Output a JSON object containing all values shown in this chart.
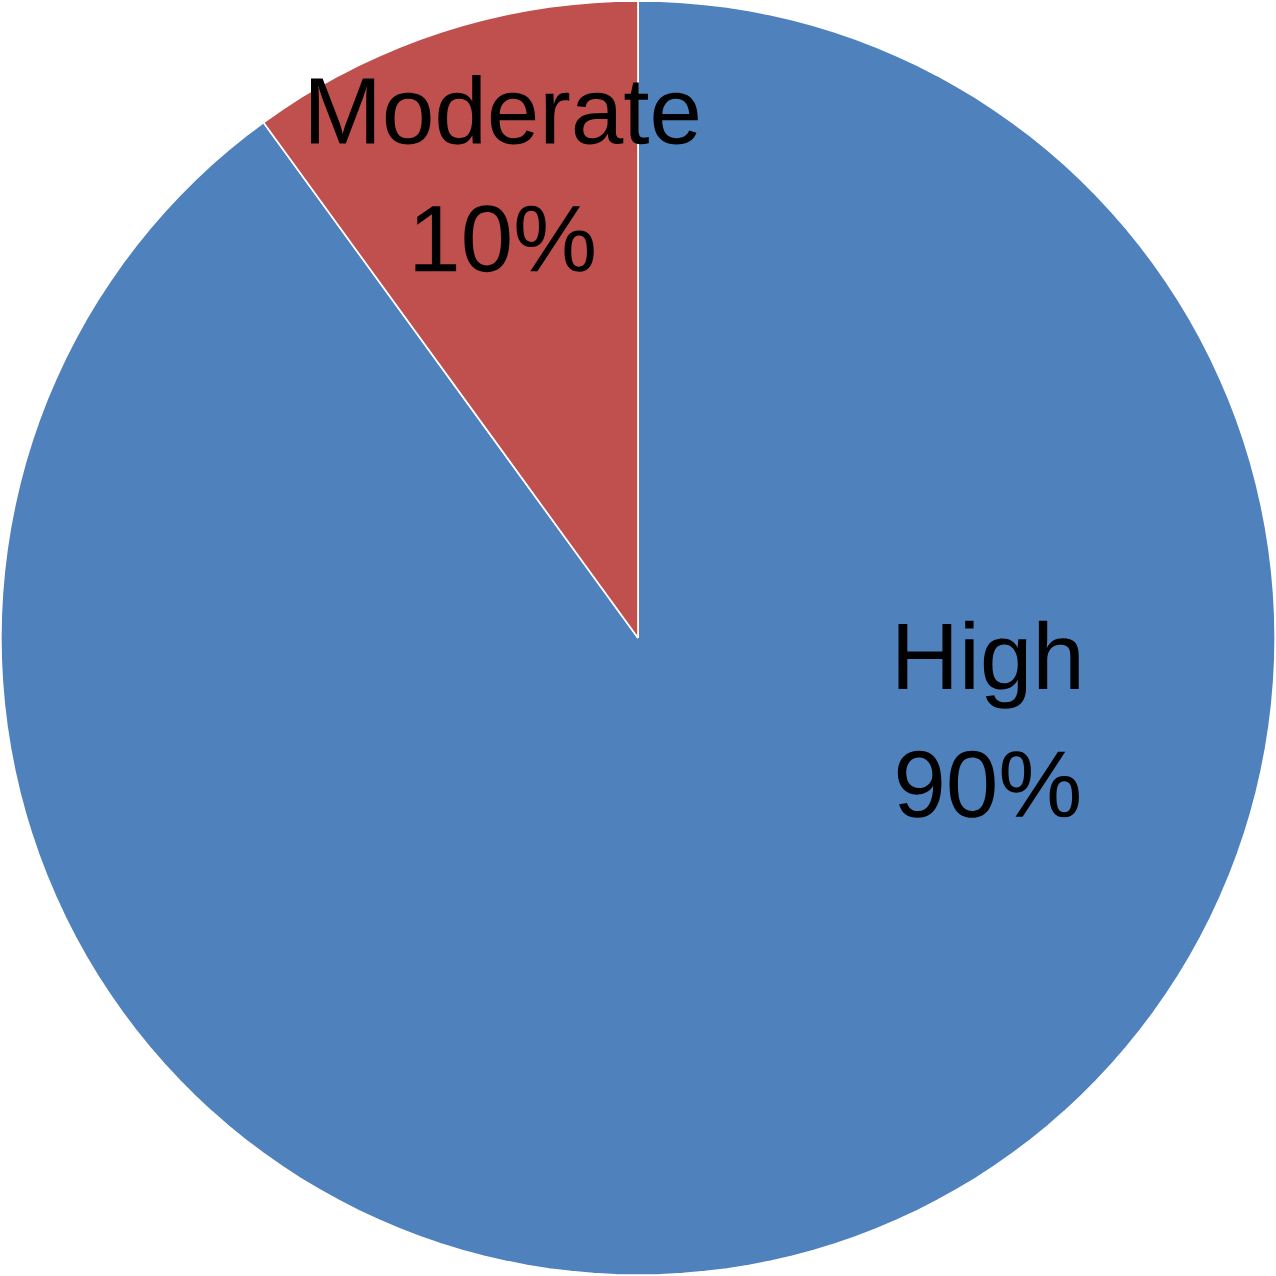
{
  "chart_data": {
    "type": "pie",
    "categories": [
      "High",
      "Moderate"
    ],
    "values": [
      90,
      10
    ],
    "colors": [
      "#4f81bd",
      "#c0504d"
    ],
    "value_labels": [
      "90%",
      "10%"
    ]
  }
}
